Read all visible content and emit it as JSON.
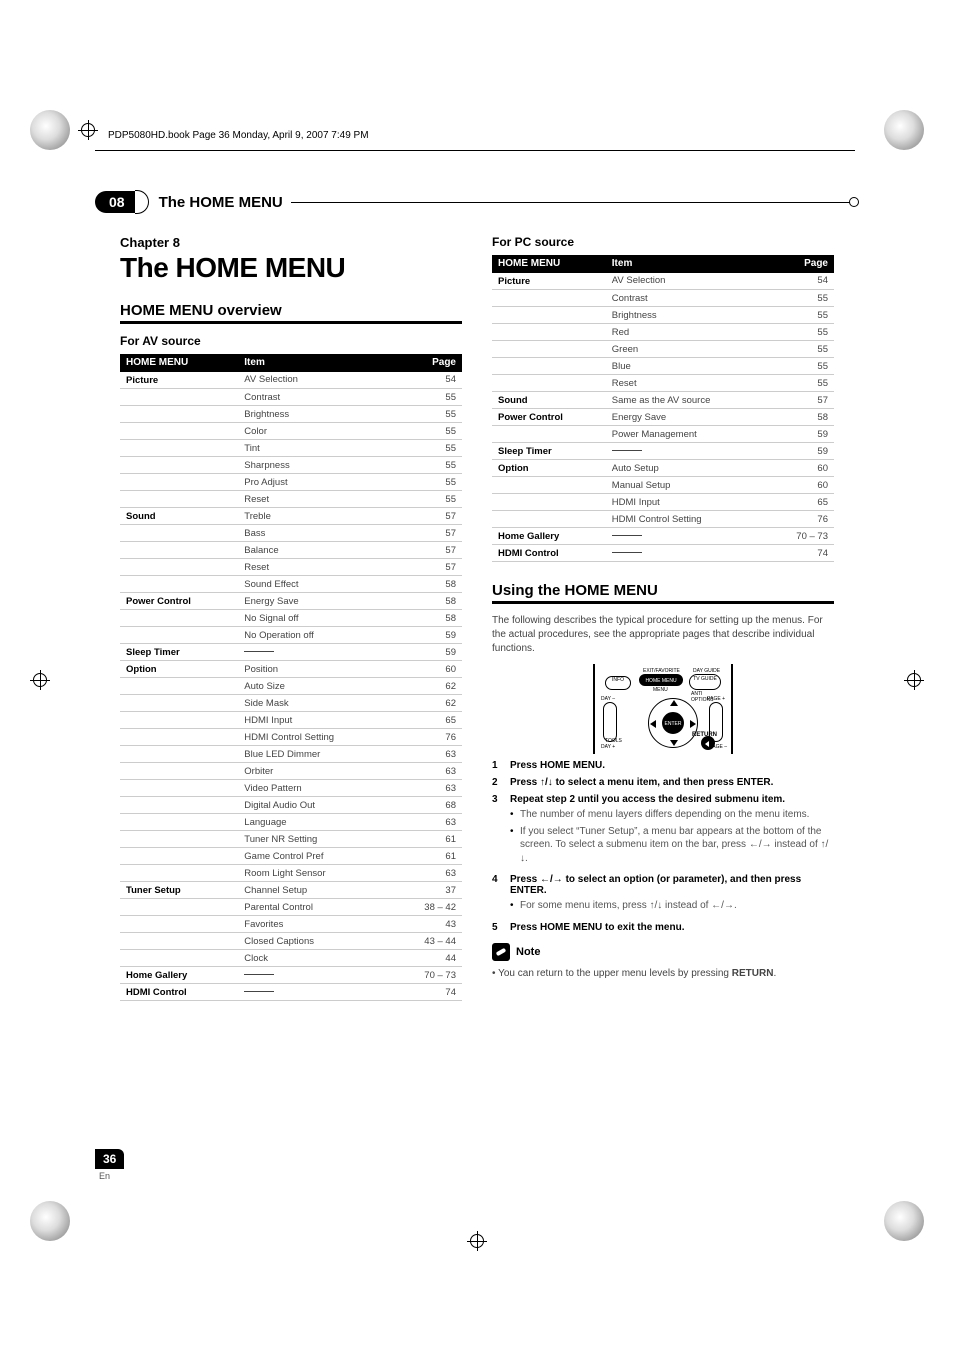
{
  "meta": {
    "header_line": "PDP5080HD.book  Page 36  Monday, April 9, 2007  7:49 PM",
    "chapter_badge": "08",
    "chapter_bar_title": "The HOME MENU",
    "chapter_label": "Chapter 8",
    "chapter_heading": "The HOME MENU",
    "page_number": "36",
    "lang": "En"
  },
  "left": {
    "overview_heading": "HOME MENU overview",
    "av_heading": "For AV source",
    "table_headers": [
      "HOME MENU",
      "Item",
      "Page"
    ],
    "rows": [
      {
        "m": "Picture",
        "i": "AV Selection",
        "p": "54",
        "sec": true
      },
      {
        "m": "",
        "i": "Contrast",
        "p": "55"
      },
      {
        "m": "",
        "i": "Brightness",
        "p": "55"
      },
      {
        "m": "",
        "i": "Color",
        "p": "55"
      },
      {
        "m": "",
        "i": "Tint",
        "p": "55"
      },
      {
        "m": "",
        "i": "Sharpness",
        "p": "55"
      },
      {
        "m": "",
        "i": "Pro Adjust",
        "p": "55"
      },
      {
        "m": "",
        "i": "Reset",
        "p": "55"
      },
      {
        "m": "Sound",
        "i": "Treble",
        "p": "57",
        "sec": true
      },
      {
        "m": "",
        "i": "Bass",
        "p": "57"
      },
      {
        "m": "",
        "i": "Balance",
        "p": "57"
      },
      {
        "m": "",
        "i": "Reset",
        "p": "57"
      },
      {
        "m": "",
        "i": "Sound Effect",
        "p": "58"
      },
      {
        "m": "Power Control",
        "i": "Energy Save",
        "p": "58",
        "sec": true
      },
      {
        "m": "",
        "i": "No Signal off",
        "p": "58"
      },
      {
        "m": "",
        "i": "No Operation off",
        "p": "59"
      },
      {
        "m": "Sleep Timer",
        "i": "__dash__",
        "p": "59",
        "sec": true
      },
      {
        "m": "Option",
        "i": "Position",
        "p": "60",
        "sec": true
      },
      {
        "m": "",
        "i": "Auto Size",
        "p": "62"
      },
      {
        "m": "",
        "i": "Side Mask",
        "p": "62"
      },
      {
        "m": "",
        "i": "HDMI Input",
        "p": "65"
      },
      {
        "m": "",
        "i": "HDMI Control Setting",
        "p": "76"
      },
      {
        "m": "",
        "i": "Blue LED Dimmer",
        "p": "63"
      },
      {
        "m": "",
        "i": "Orbiter",
        "p": "63"
      },
      {
        "m": "",
        "i": "Video Pattern",
        "p": "63"
      },
      {
        "m": "",
        "i": "Digital Audio Out",
        "p": "68"
      },
      {
        "m": "",
        "i": "Language",
        "p": "63"
      },
      {
        "m": "",
        "i": "Tuner NR Setting",
        "p": "61"
      },
      {
        "m": "",
        "i": "Game Control Pref",
        "p": "61"
      },
      {
        "m": "",
        "i": "Room Light Sensor",
        "p": "63"
      },
      {
        "m": "Tuner Setup",
        "i": "Channel Setup",
        "p": "37",
        "sec": true
      },
      {
        "m": "",
        "i": "Parental Control",
        "p": "38 – 42"
      },
      {
        "m": "",
        "i": "Favorites",
        "p": "43"
      },
      {
        "m": "",
        "i": "Closed Captions",
        "p": "43 – 44"
      },
      {
        "m": "",
        "i": "Clock",
        "p": "44"
      },
      {
        "m": "Home Gallery",
        "i": "__dash__",
        "p": "70 – 73",
        "sec": true
      },
      {
        "m": "HDMI Control",
        "i": "__dash__",
        "p": "74",
        "sec": true
      }
    ]
  },
  "right": {
    "pc_heading": "For PC source",
    "table_headers": [
      "HOME MENU",
      "Item",
      "Page"
    ],
    "rows": [
      {
        "m": "Picture",
        "i": "AV Selection",
        "p": "54",
        "sec": true
      },
      {
        "m": "",
        "i": "Contrast",
        "p": "55"
      },
      {
        "m": "",
        "i": "Brightness",
        "p": "55"
      },
      {
        "m": "",
        "i": "Red",
        "p": "55"
      },
      {
        "m": "",
        "i": "Green",
        "p": "55"
      },
      {
        "m": "",
        "i": "Blue",
        "p": "55"
      },
      {
        "m": "",
        "i": "Reset",
        "p": "55"
      },
      {
        "m": "Sound",
        "i": "Same as the AV source",
        "p": "57",
        "sec": true
      },
      {
        "m": "Power Control",
        "i": "Energy Save",
        "p": "58",
        "sec": true
      },
      {
        "m": "",
        "i": "Power Management",
        "p": "59"
      },
      {
        "m": "Sleep Timer",
        "i": "__dash__",
        "p": "59",
        "sec": true
      },
      {
        "m": "Option",
        "i": "Auto Setup",
        "p": "60",
        "sec": true
      },
      {
        "m": "",
        "i": "Manual Setup",
        "p": "60"
      },
      {
        "m": "",
        "i": "HDMI Input",
        "p": "65"
      },
      {
        "m": "",
        "i": "HDMI Control Setting",
        "p": "76"
      },
      {
        "m": "Home Gallery",
        "i": "__dash__",
        "p": "70 – 73",
        "sec": true
      },
      {
        "m": "HDMI Control",
        "i": "__dash__",
        "p": "74",
        "sec": true
      }
    ],
    "using_heading": "Using the HOME MENU",
    "using_desc": "The following describes the typical procedure for setting up the menus. For the actual procedures, see the appropriate pages that describe individual functions.",
    "remote_labels": {
      "info": "INFO",
      "home_menu_top": "EXIT/FAVORITE",
      "home_menu": "HOME MENU",
      "menu_sub": "MENU",
      "tv_guide_top": "DAY GUIDE",
      "tv_guide": "TV GUIDE",
      "tv_guide_sub": "ANTI OPTIONS",
      "enter": "ENTER",
      "day_minus": "DAY –",
      "day_plus": "DAY +",
      "page_plus": "PAGE +",
      "page_minus": "PAGE –",
      "return": "RETURN",
      "tools": "TOOLS"
    },
    "steps": [
      {
        "n": "1",
        "main": "Press HOME MENU."
      },
      {
        "n": "2",
        "main": "Press ↑/↓ to select a menu item, and then press ENTER."
      },
      {
        "n": "3",
        "main": "Repeat step 2 until you access the desired submenu item.",
        "bullets": [
          "The number of menu layers differs depending on the menu items.",
          "If you select “Tuner Setup”, a menu bar appears at the bottom of the screen. To select a submenu item on the bar, press ←/→ instead of ↑/↓."
        ]
      },
      {
        "n": "4",
        "main": "Press ←/→ to select an option (or parameter), and then press ENTER.",
        "bullets": [
          "For some menu items, press ↑/↓ instead of ←/→."
        ]
      },
      {
        "n": "5",
        "main": "Press HOME MENU to exit the menu."
      }
    ],
    "note_label": "Note",
    "note_text_pre": "You can return to the upper menu levels by pressing ",
    "note_text_bold": "RETURN",
    "note_text_post": "."
  },
  "style": {
    "bg": "#ffffff",
    "text": "#000000",
    "muted": "#555555",
    "header_bg": "#000000",
    "header_fg": "#ffffff",
    "row_border": "#cccccc",
    "font_body_pt": 10,
    "font_h1_pt": 28,
    "font_h2_pt": 15,
    "font_h3_pt": 12
  }
}
